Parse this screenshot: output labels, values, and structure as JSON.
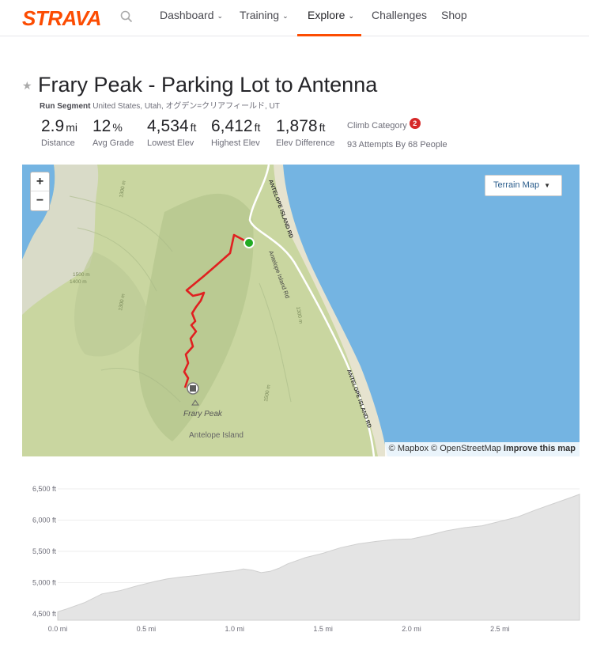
{
  "header": {
    "logo": "STRAVA",
    "nav": [
      {
        "label": "Dashboard",
        "dropdown": true
      },
      {
        "label": "Training",
        "dropdown": true
      },
      {
        "label": "Explore",
        "dropdown": true,
        "active": true
      },
      {
        "label": "Challenges",
        "dropdown": false
      },
      {
        "label": "Shop",
        "dropdown": false
      }
    ],
    "chevron": "⌄",
    "accent_color": "#fc4c02"
  },
  "segment": {
    "title": "Frary Peak - Parking Lot to Antenna",
    "type": "Run Segment",
    "location": "United States, Utah, オグデン=クリアフィールド, UT",
    "stats": [
      {
        "value": "2.9",
        "unit": "mi",
        "label": "Distance"
      },
      {
        "value": "12",
        "unit": "%",
        "label": "Avg Grade"
      },
      {
        "value": "4,534",
        "unit": "ft",
        "label": "Lowest Elev"
      },
      {
        "value": "6,412",
        "unit": "ft",
        "label": "Highest Elev"
      },
      {
        "value": "1,878",
        "unit": "ft",
        "label": "Elev Difference"
      }
    ],
    "climb_category_label": "Climb Category",
    "climb_category": "2",
    "attempts": "93 Attempts By 68 People"
  },
  "map": {
    "zoom_in": "+",
    "zoom_out": "−",
    "layer_button": "Terrain Map",
    "attribution_mapbox": "© Mapbox",
    "attribution_osm": "© OpenStreetMap",
    "attribution_improve": "Improve this map",
    "labels": {
      "road1": "ANTELOPE ISLAND RD",
      "road2": "Antelope Island Rd",
      "road3": "ANTELOPE ISLAND RD",
      "peak": "Frary Peak",
      "island": "Antelope Island",
      "c1300a": "1300 m",
      "c1300b": "1300 m",
      "c1400": "1400 m",
      "c1500": "1500 m",
      "c1500b": "1500 m",
      "c1300c": "1300 m"
    }
  },
  "chart_data": {
    "type": "area",
    "xlabel": "",
    "ylabel": "",
    "xlim": [
      0,
      2.95
    ],
    "ylim": [
      4400,
      6550
    ],
    "x_ticks": [
      "0.0 mi",
      "0.5 mi",
      "1.0 mi",
      "1.5 mi",
      "2.0 mi",
      "2.5 mi"
    ],
    "x_tick_values": [
      0,
      0.5,
      1.0,
      1.5,
      2.0,
      2.5
    ],
    "y_ticks": [
      "4,500 ft",
      "5,000 ft",
      "5,500 ft",
      "6,000 ft",
      "6,500 ft"
    ],
    "y_tick_values": [
      4500,
      5000,
      5500,
      6000,
      6500
    ],
    "series": [
      {
        "x": [
          0,
          0.05,
          0.15,
          0.25,
          0.35,
          0.45,
          0.55,
          0.62,
          0.7,
          0.8,
          0.9,
          1.0,
          1.05,
          1.1,
          1.15,
          1.2,
          1.25,
          1.3,
          1.4,
          1.5,
          1.6,
          1.7,
          1.8,
          1.9,
          2.0,
          2.1,
          2.2,
          2.3,
          2.4,
          2.5,
          2.6,
          2.7,
          2.8,
          2.9,
          2.95
        ],
        "values": [
          4534,
          4580,
          4680,
          4820,
          4870,
          4950,
          5020,
          5060,
          5090,
          5120,
          5160,
          5190,
          5220,
          5200,
          5160,
          5180,
          5230,
          5300,
          5400,
          5470,
          5560,
          5620,
          5660,
          5690,
          5700,
          5760,
          5830,
          5880,
          5910,
          5980,
          6050,
          6160,
          6260,
          6360,
          6412
        ]
      }
    ],
    "fill_color": "#e4e4e4",
    "line_color": "#cfcfcf",
    "grid": true
  }
}
